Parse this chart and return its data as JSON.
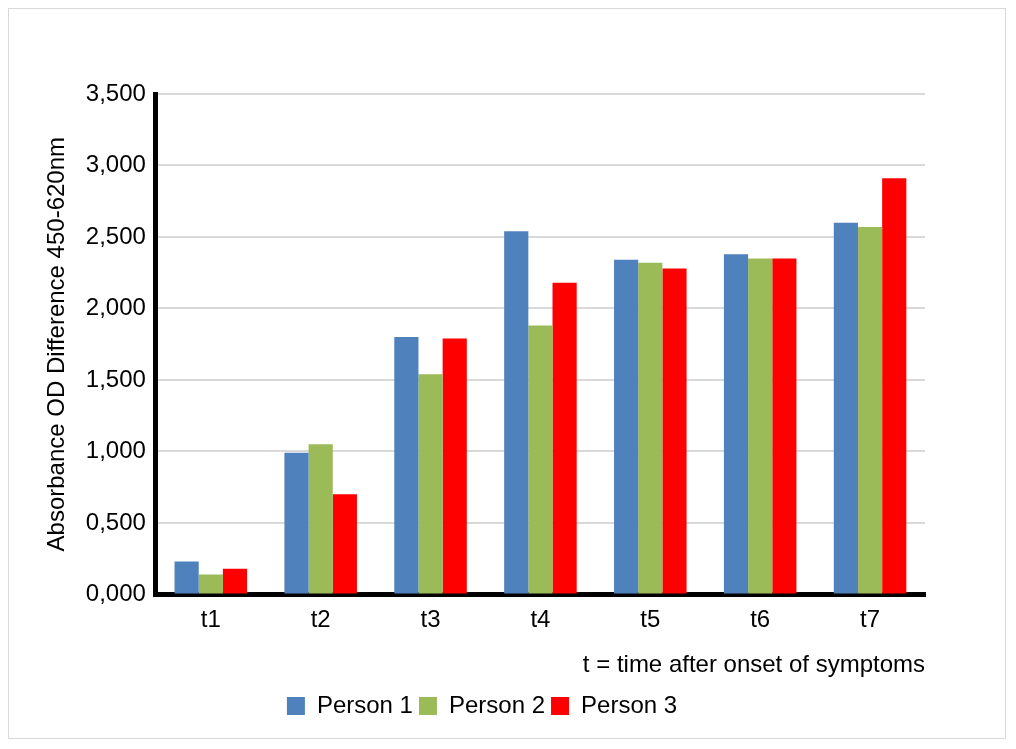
{
  "chart_data": {
    "type": "bar",
    "xlabel": "t = time after onset of symptoms",
    "ylabel": "Absorbance OD Difference 450-620nm",
    "categories": [
      "t1",
      "t2",
      "t3",
      "t4",
      "t5",
      "t6",
      "t7"
    ],
    "series": [
      {
        "name": "Person 1",
        "color": "#4f81bd",
        "values": [
          0.23,
          0.99,
          1.8,
          2.54,
          2.34,
          2.38,
          2.6
        ]
      },
      {
        "name": "Person 2",
        "color": "#9bbb59",
        "values": [
          0.14,
          1.05,
          1.54,
          1.88,
          2.32,
          2.35,
          2.57
        ]
      },
      {
        "name": "Person 3",
        "color": "#ff0000",
        "values": [
          0.18,
          0.7,
          1.79,
          2.18,
          2.28,
          2.35,
          2.91
        ]
      }
    ],
    "ylim": [
      0,
      3.5
    ],
    "yticks": [
      {
        "value": 0,
        "label": "0,000"
      },
      {
        "value": 0.5,
        "label": "0,500"
      },
      {
        "value": 1,
        "label": "1,000"
      },
      {
        "value": 1.5,
        "label": "1,500"
      },
      {
        "value": 2,
        "label": "2,000"
      },
      {
        "value": 2.5,
        "label": "2,500"
      },
      {
        "value": 3,
        "label": "3,000"
      },
      {
        "value": 3.5,
        "label": "3,500"
      }
    ],
    "grid": "y",
    "legend": "bottom"
  }
}
